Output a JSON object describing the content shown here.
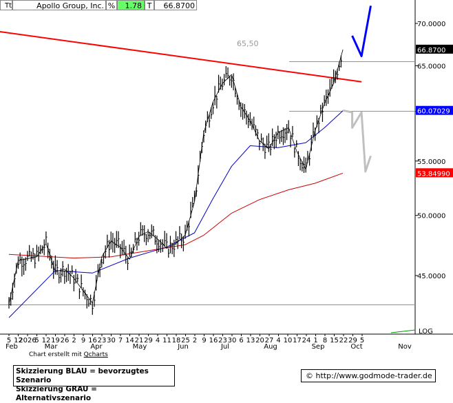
{
  "header": {
    "symbol_short": "Ttl",
    "company": "Apollo Group, Inc.",
    "pct_symbol": "%",
    "pct_value": "1.78",
    "t_label": "T",
    "last_price": "66.8700"
  },
  "scale_label": "LOG",
  "peak_annotation": "65,50",
  "credit": {
    "text": "Chart erstellt mit ",
    "link": "Qcharts"
  },
  "legend": {
    "line1": "Skizzierung BLAU = bevorzugtes Szenario",
    "line2": "Skizzierung GRAU = Alternativszenario"
  },
  "url": "© http://www.godmode-trader.de",
  "colors": {
    "price": "#000000",
    "trendline": "#ff0000",
    "ma_short": "#0000cc",
    "ma_long": "#cc0000",
    "scenario_blue": "#0000ff",
    "scenario_gray": "#c0c0c0",
    "hline": "#909090",
    "volume": "#009900"
  },
  "chart_data": {
    "type": "line",
    "scale": "log",
    "ylim": [
      41.5,
      73
    ],
    "y_ticks": [
      "70.0000",
      "65.0000",
      "60.0000",
      "55.0000",
      "50.0000",
      "45.0000"
    ],
    "x_day_labels": [
      "5",
      "12",
      "2026",
      "5",
      "12",
      "19",
      "26",
      "2",
      "9",
      "16",
      "23",
      "30",
      "7",
      "14",
      "21",
      "29",
      "4",
      "11",
      "18",
      "25",
      "2",
      "9",
      "16",
      "23",
      "30",
      "6",
      "13",
      "20",
      "27",
      "4",
      "10",
      "17",
      "24",
      "1",
      "8",
      "15",
      "22",
      "29",
      "5"
    ],
    "x_month_labels": [
      "Feb",
      "Mar",
      "Apr",
      "May",
      "Jun",
      "Jul",
      "Aug",
      "Sep",
      "Oct",
      "Nov"
    ],
    "value_tags": [
      {
        "label": "66.8700",
        "value": 66.87,
        "style": "black"
      },
      {
        "label": "60.07029",
        "value": 60.07,
        "style": "blue"
      },
      {
        "label": "53.84990",
        "value": 53.85,
        "style": "red"
      }
    ],
    "horizontal_levels": [
      65.5,
      60.07,
      42.8
    ],
    "peak": 65.5,
    "price_series": [
      {
        "date": "Feb 5",
        "close": 42.8
      },
      {
        "date": "Feb 12",
        "close": 46.2
      },
      {
        "date": "Feb 26",
        "close": 46.5
      },
      {
        "date": "Mar 5",
        "close": 47.6
      },
      {
        "date": "Mar 12",
        "close": 45.3
      },
      {
        "date": "Mar 19",
        "close": 45.5
      },
      {
        "date": "Mar 26",
        "close": 44.8
      },
      {
        "date": "Apr 2",
        "close": 43.8
      },
      {
        "date": "Apr 9",
        "close": 42.9
      },
      {
        "date": "Apr 16",
        "close": 46.5
      },
      {
        "date": "Apr 23",
        "close": 47.8
      },
      {
        "date": "Apr 30",
        "close": 47.3
      },
      {
        "date": "May 7",
        "close": 46.3
      },
      {
        "date": "May 14",
        "close": 48.2
      },
      {
        "date": "May 21",
        "close": 48.6
      },
      {
        "date": "May 29",
        "close": 47.9
      },
      {
        "date": "Jun 4",
        "close": 47.2
      },
      {
        "date": "Jun 11",
        "close": 47.6
      },
      {
        "date": "Jun 18",
        "close": 48.3
      },
      {
        "date": "Jun 25",
        "close": 51.2
      },
      {
        "date": "Jul 2",
        "close": 57.8
      },
      {
        "date": "Jul 9",
        "close": 61.0
      },
      {
        "date": "Jul 16",
        "close": 63.0
      },
      {
        "date": "Jul 23",
        "close": 64.0
      },
      {
        "date": "Jul 30",
        "close": 60.5
      },
      {
        "date": "Aug 6",
        "close": 59.0
      },
      {
        "date": "Aug 13",
        "close": 57.0
      },
      {
        "date": "Aug 20",
        "close": 56.2
      },
      {
        "date": "Aug 27",
        "close": 57.8
      },
      {
        "date": "Sep 4",
        "close": 58.3
      },
      {
        "date": "Sep 10",
        "close": 56.0
      },
      {
        "date": "Sep 17",
        "close": 54.2
      },
      {
        "date": "Sep 24",
        "close": 58.0
      },
      {
        "date": "Oct 1",
        "close": 60.8
      },
      {
        "date": "Oct 8",
        "close": 63.0
      },
      {
        "date": "Oct 15",
        "close": 66.87
      }
    ],
    "ma_short": [
      {
        "date": "Feb 5",
        "value": 41.8
      },
      {
        "date": "Mar 12",
        "value": 45.4
      },
      {
        "date": "Apr 9",
        "value": 45.2
      },
      {
        "date": "May 7",
        "value": 46.4
      },
      {
        "date": "Jun 4",
        "value": 47.3
      },
      {
        "date": "Jun 25",
        "value": 48.5
      },
      {
        "date": "Jul 9",
        "value": 51.5
      },
      {
        "date": "Jul 23",
        "value": 54.5
      },
      {
        "date": "Aug 6",
        "value": 56.5
      },
      {
        "date": "Aug 27",
        "value": 56.3
      },
      {
        "date": "Sep 17",
        "value": 56.8
      },
      {
        "date": "Oct 1",
        "value": 58.3
      },
      {
        "date": "Oct 15",
        "value": 60.07
      }
    ],
    "ma_long": [
      {
        "date": "Feb 5",
        "value": 46.7
      },
      {
        "date": "Mar 26",
        "value": 46.4
      },
      {
        "date": "Apr 23",
        "value": 46.5
      },
      {
        "date": "May 21",
        "value": 47.0
      },
      {
        "date": "Jun 18",
        "value": 47.5
      },
      {
        "date": "Jul 2",
        "value": 48.3
      },
      {
        "date": "Jul 23",
        "value": 50.2
      },
      {
        "date": "Aug 13",
        "value": 51.4
      },
      {
        "date": "Sep 4",
        "value": 52.3
      },
      {
        "date": "Sep 24",
        "value": 52.9
      },
      {
        "date": "Oct 15",
        "value": 53.85
      }
    ],
    "trendline": [
      {
        "date": "Jan 29",
        "value": 69.0
      },
      {
        "date": "Oct 29",
        "value": 63.2
      }
    ],
    "scenario_blue": [
      {
        "date": "Oct 22",
        "value": 68.5
      },
      {
        "date": "Oct 29",
        "value": 66.1
      },
      {
        "date": "Nov 5",
        "value": 72.2
      }
    ],
    "scenario_gray": [
      {
        "date": "Oct 15",
        "value": 60.1
      },
      {
        "date": "Oct 22",
        "value": 59.9
      },
      {
        "date": "Oct 22",
        "value": 58.3
      },
      {
        "date": "Oct 29",
        "value": 59.9
      },
      {
        "date": "Nov 1",
        "value": 54.0
      },
      {
        "date": "Nov 5",
        "value": 55.5
      }
    ]
  }
}
